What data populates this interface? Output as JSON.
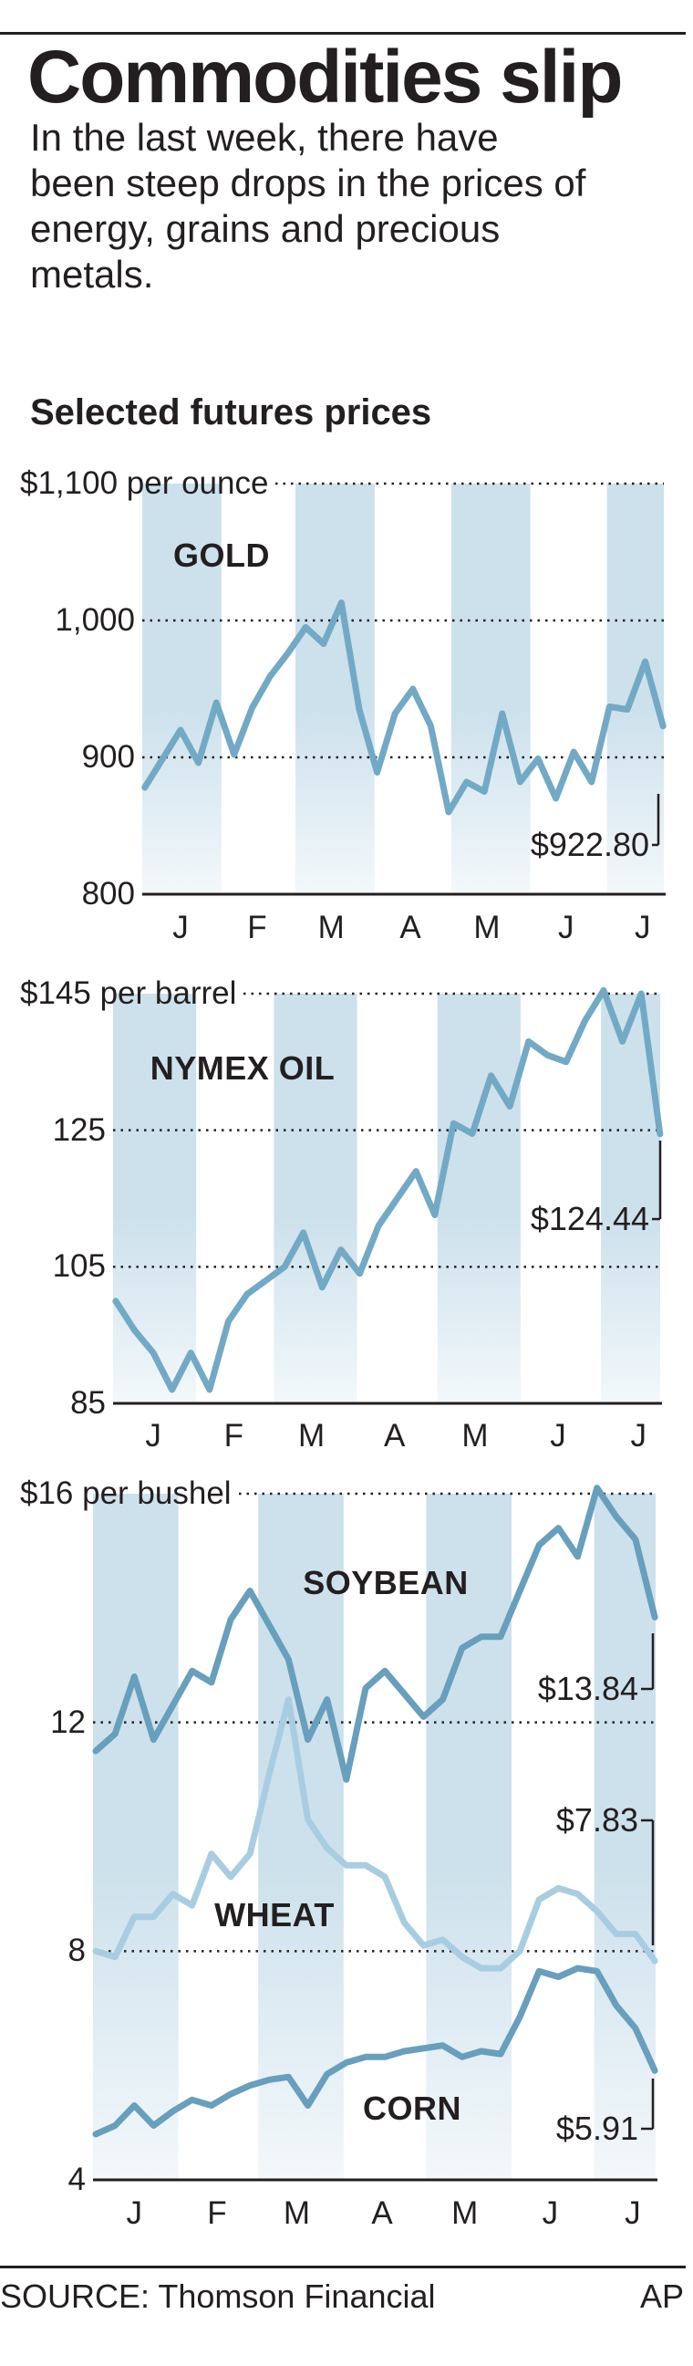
{
  "header": {
    "title": "Commodities slip",
    "subtitle_lines": [
      "In the last week, there have",
      "been steep drops in the prices of",
      "energy, grains and precious",
      "metals."
    ],
    "section": "Selected futures prices"
  },
  "footer": {
    "source": "SOURCE: Thomson Financial",
    "credit": "AP"
  },
  "colors": {
    "band_top": "#cde1ec",
    "band_bottom": "#f3f8fb",
    "line": "#72a9c5",
    "line_dark": "#679fbc",
    "wheat": "#a8cde0",
    "text": "#231f20"
  },
  "chart_data": [
    {
      "type": "line",
      "ylim": [
        800,
        1100
      ],
      "y_ticks": [
        {
          "value": 1100,
          "label": "$1,100 per ounce"
        },
        {
          "value": 1000,
          "label": "1,000"
        },
        {
          "value": 900,
          "label": "900"
        },
        {
          "value": 800,
          "label": "800"
        }
      ],
      "x_tick_labels": [
        "J",
        "F",
        "M",
        "A",
        "M",
        "J",
        "J"
      ],
      "grid": true,
      "x": [
        "Jan 2",
        "Jan 9",
        "Jan 16",
        "Jan 23",
        "Jan 30",
        "Feb 6",
        "Feb 13",
        "Feb 20",
        "Feb 27",
        "Mar 5",
        "Mar 12",
        "Mar 19",
        "Mar 26",
        "Apr 2",
        "Apr 9",
        "Apr 16",
        "Apr 23",
        "Apr 30",
        "May 7",
        "May 14",
        "May 21",
        "May 28",
        "Jun 4",
        "Jun 11",
        "Jun 18",
        "Jun 25",
        "Jul 2",
        "Jul 9",
        "Jul 16",
        "Jul 23"
      ],
      "series": [
        {
          "name": "GOLD",
          "color": "#72a9c5",
          "end_label": "$922.80",
          "values": [
            878,
            899,
            920,
            896,
            940,
            902,
            936,
            959,
            976,
            995,
            983,
            1013,
            935,
            889,
            932,
            950,
            923,
            860,
            882,
            875,
            932,
            882,
            899,
            870,
            904,
            882,
            937,
            935,
            970,
            922.8
          ]
        }
      ]
    },
    {
      "type": "line",
      "ylim": [
        85,
        145
      ],
      "y_ticks": [
        {
          "value": 145,
          "label": "$145 per barrel"
        },
        {
          "value": 125,
          "label": "125"
        },
        {
          "value": 105,
          "label": "105"
        },
        {
          "value": 85,
          "label": "85"
        }
      ],
      "x_tick_labels": [
        "J",
        "F",
        "M",
        "A",
        "M",
        "J",
        "J"
      ],
      "grid": true,
      "x": [
        "Jan 2",
        "Jan 9",
        "Jan 16",
        "Jan 23",
        "Jan 30",
        "Feb 6",
        "Feb 13",
        "Feb 20",
        "Feb 27",
        "Mar 5",
        "Mar 12",
        "Mar 19",
        "Mar 26",
        "Apr 2",
        "Apr 9",
        "Apr 16",
        "Apr 23",
        "Apr 30",
        "May 7",
        "May 14",
        "May 21",
        "May 28",
        "Jun 4",
        "Jun 11",
        "Jun 18",
        "Jun 25",
        "Jul 2",
        "Jul 9",
        "Jul 16",
        "Jul 23"
      ],
      "series": [
        {
          "name": "NYMEX OIL",
          "color": "#72a9c5",
          "end_label": "$124.44",
          "values": [
            100,
            95.7,
            92.4,
            87,
            92.4,
            87,
            97,
            101,
            103,
            105,
            110,
            102,
            107.5,
            104,
            111,
            115,
            119,
            112.6,
            126,
            124.5,
            133,
            128.5,
            138,
            136,
            135,
            141,
            145.5,
            138,
            145,
            124.44
          ]
        }
      ]
    },
    {
      "type": "line",
      "ylim": [
        4,
        16
      ],
      "y_ticks": [
        {
          "value": 16,
          "label": "$16 per bushel"
        },
        {
          "value": 12,
          "label": "12"
        },
        {
          "value": 8,
          "label": "8"
        },
        {
          "value": 4,
          "label": "4"
        }
      ],
      "x_tick_labels": [
        "J",
        "F",
        "M",
        "A",
        "M",
        "J",
        "J"
      ],
      "grid": true,
      "x": [
        "Jan 2",
        "Jan 9",
        "Jan 16",
        "Jan 23",
        "Jan 30",
        "Feb 6",
        "Feb 13",
        "Feb 20",
        "Feb 27",
        "Mar 5",
        "Mar 12",
        "Mar 19",
        "Mar 26",
        "Apr 2",
        "Apr 9",
        "Apr 16",
        "Apr 23",
        "Apr 30",
        "May 7",
        "May 14",
        "May 21",
        "May 28",
        "Jun 4",
        "Jun 11",
        "Jun 18",
        "Jun 25",
        "Jul 2",
        "Jul 9",
        "Jul 16",
        "Jul 23"
      ],
      "series": [
        {
          "name": "SOYBEAN",
          "color": "#679fbc",
          "end_label": "$13.84",
          "values": [
            11.5,
            11.8,
            12.8,
            11.7,
            12.3,
            12.9,
            12.7,
            13.8,
            14.3,
            13.7,
            13.1,
            11.7,
            12.4,
            11.0,
            12.6,
            12.9,
            12.5,
            12.1,
            12.4,
            13.3,
            13.5,
            13.5,
            14.3,
            15.1,
            15.4,
            14.9,
            16.1,
            15.6,
            15.2,
            13.84
          ]
        },
        {
          "name": "WHEAT",
          "color": "#a8cde0",
          "end_label": "$7.83",
          "values": [
            8.0,
            7.9,
            8.6,
            8.6,
            9.0,
            8.8,
            9.7,
            9.3,
            9.7,
            11.1,
            12.4,
            10.3,
            9.8,
            9.5,
            9.5,
            9.3,
            8.5,
            8.1,
            8.2,
            7.9,
            7.7,
            7.7,
            8.0,
            8.9,
            9.1,
            9.0,
            8.7,
            8.3,
            8.3,
            7.83
          ]
        },
        {
          "name": "CORN",
          "color": "#679fbc",
          "end_label": "$5.91",
          "values": [
            4.8,
            4.95,
            5.3,
            4.95,
            5.2,
            5.4,
            5.3,
            5.5,
            5.65,
            5.75,
            5.8,
            5.3,
            5.85,
            6.05,
            6.15,
            6.15,
            6.25,
            6.3,
            6.35,
            6.15,
            6.25,
            6.2,
            6.85,
            7.65,
            7.55,
            7.7,
            7.65,
            7.05,
            6.65,
            5.91
          ]
        }
      ]
    }
  ]
}
